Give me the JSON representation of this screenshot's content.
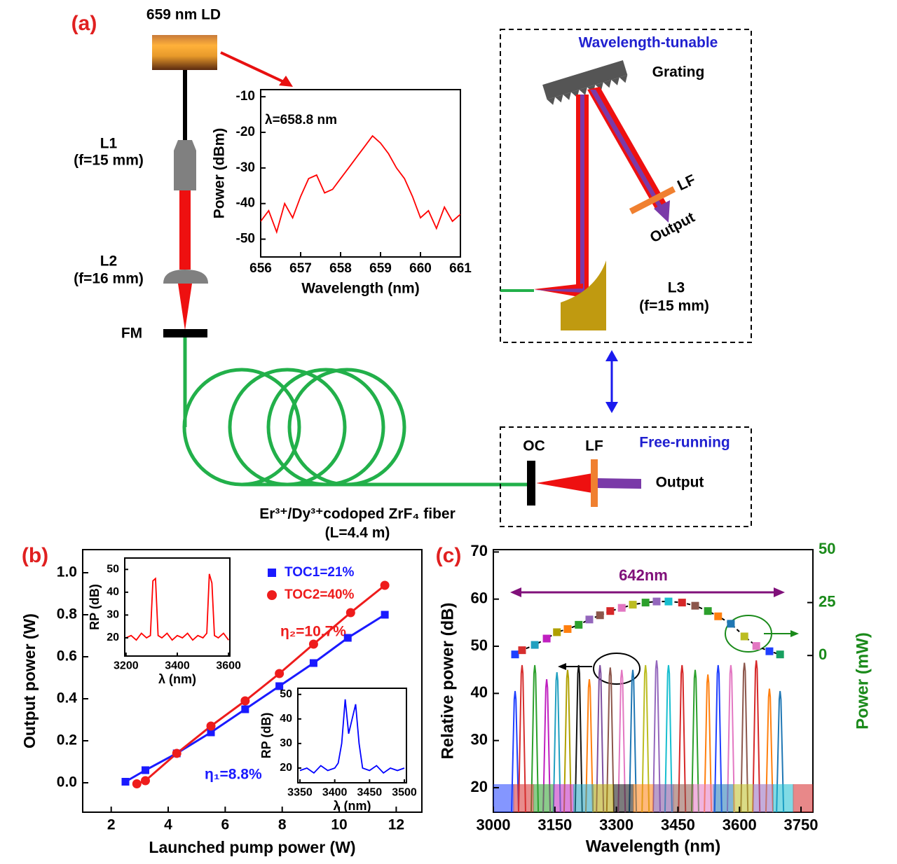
{
  "diagram": {
    "panel_label": "(a)",
    "ld": "659 nm LD",
    "l1": "L1",
    "l1_focal": "(f=15 mm)",
    "l2": "L2",
    "l2_focal": "(f=16 mm)",
    "fm": "FM",
    "tunable_title": "Wavelength-tunable",
    "grating": "Grating",
    "lf_tunable": "LF",
    "output_tunable": "Output",
    "l3": "L3",
    "l3_focal": "(f=15 mm)",
    "free_title": "Free-running",
    "oc": "OC",
    "lf_free": "LF",
    "output_free": "Output",
    "fiber": "Er³⁺/Dy³⁺codoped ZrF₄ fiber",
    "fiber_length": "(L=4.4 m)"
  },
  "chart_data": [
    {
      "type": "line",
      "xlabel": "Wavelength (nm)",
      "ylabel": "Power (dBm)",
      "annotations": [
        "λ=658.8 nm"
      ],
      "xlim": [
        656,
        661
      ],
      "xticks": [
        656,
        657,
        658,
        659,
        660,
        661
      ],
      "ylim": [
        -55,
        -8
      ],
      "yticks": [
        -10,
        -20,
        -30,
        -40,
        -50
      ],
      "series": [
        {
          "color": "#ff0000",
          "style": "line",
          "x": [
            656.0,
            656.2,
            656.4,
            656.6,
            656.8,
            657.0,
            657.2,
            657.4,
            657.6,
            657.8,
            658.0,
            658.2,
            658.4,
            658.6,
            658.8,
            659.0,
            659.2,
            659.4,
            659.6,
            659.8,
            660.0,
            660.2,
            660.4,
            660.6,
            660.8,
            661.0
          ],
          "values": [
            -45,
            -42,
            -48,
            -40,
            -44,
            -38,
            -33,
            -32,
            -37,
            -36,
            -33,
            -30,
            -27,
            -24,
            -21,
            -23,
            -26,
            -30,
            -33,
            -38,
            -44,
            -42,
            -47,
            -41,
            -45,
            -43
          ]
        }
      ]
    },
    {
      "type": "line",
      "panel_label": "(b)",
      "xlabel": "Launched pump power (W)",
      "ylabel": "Output power (W)",
      "annotations": [
        "η₂=10.7%",
        "η₁=8.8%"
      ],
      "xlim": [
        1,
        12.9
      ],
      "xticks": [
        2,
        4,
        6,
        8,
        10,
        12
      ],
      "ylim": [
        -0.14,
        1.11
      ],
      "yticks": [
        {
          "value": 0,
          "label": "0.0"
        },
        0.2,
        0.4,
        0.6,
        0.8,
        {
          "value": 1,
          "label": "1.0"
        }
      ],
      "legend": "top-right",
      "series": [
        {
          "name": "TOC1=21%",
          "color": "#1a1aff",
          "style": "line-markers",
          "marker": "square",
          "x": [
            2.5,
            3.2,
            4.3,
            5.5,
            6.7,
            7.9,
            9.1,
            10.3,
            11.6
          ],
          "values": [
            0.005,
            0.06,
            0.14,
            0.24,
            0.35,
            0.46,
            0.57,
            0.69,
            0.8
          ]
        },
        {
          "name": "TOC2=40%",
          "color": "#ee1c1c",
          "style": "line-markers",
          "marker": "circle",
          "x": [
            2.9,
            3.2,
            4.3,
            5.5,
            6.7,
            7.9,
            9.1,
            10.4,
            11.6
          ],
          "values": [
            -0.005,
            0.01,
            0.14,
            0.27,
            0.39,
            0.52,
            0.66,
            0.81,
            0.94
          ]
        }
      ]
    },
    {
      "type": "line",
      "xlabel": "λ (nm)",
      "ylabel": "RP (dB)",
      "xlim": [
        3195,
        3605
      ],
      "xticks": [
        3200,
        3400,
        3600
      ],
      "ylim": [
        12,
        55
      ],
      "yticks": [
        20,
        30,
        40,
        50
      ],
      "series": [
        {
          "color": "#ff0000",
          "style": "line",
          "x": [
            3200,
            3220,
            3240,
            3260,
            3280,
            3295,
            3305,
            3315,
            3325,
            3340,
            3360,
            3380,
            3400,
            3420,
            3440,
            3460,
            3480,
            3500,
            3515,
            3525,
            3535,
            3545,
            3560,
            3580,
            3600
          ],
          "values": [
            20,
            21,
            19,
            22,
            20,
            21,
            45,
            46,
            21,
            20,
            22,
            19,
            21,
            20,
            22,
            19,
            21,
            20,
            22,
            48,
            44,
            21,
            20,
            22,
            19
          ]
        }
      ]
    },
    {
      "type": "line",
      "xlabel": "λ (nm)",
      "ylabel": "RP (dB)",
      "xlim": [
        3347,
        3503
      ],
      "xticks": [
        3350,
        3400,
        3450,
        3500
      ],
      "ylim": [
        14,
        52.5
      ],
      "yticks": [
        20,
        30,
        40,
        50
      ],
      "series": [
        {
          "color": "#0000ff",
          "style": "line",
          "x": [
            3350,
            3360,
            3370,
            3380,
            3390,
            3400,
            3405,
            3410,
            3415,
            3420,
            3425,
            3430,
            3435,
            3440,
            3450,
            3460,
            3470,
            3480,
            3490,
            3500
          ],
          "values": [
            19,
            20,
            18,
            21,
            19,
            20,
            22,
            30,
            48,
            34,
            40,
            46,
            30,
            20,
            19,
            21,
            18,
            20,
            19,
            20
          ]
        }
      ]
    },
    {
      "type": "line",
      "panel_label": "(c)",
      "xlabel": "Wavelength (nm)",
      "ylabel": "Relative power (dB)",
      "y2label": "Power (mW)",
      "annotations": [
        "642nm"
      ],
      "xlim": [
        3000,
        3779
      ],
      "xticks": [
        3000,
        3150,
        3300,
        3450,
        3600,
        3750
      ],
      "ylim": [
        14.8,
        70.5
      ],
      "yticks": [
        20,
        30,
        40,
        50,
        60,
        70
      ],
      "y2lim": [
        -74,
        50
      ],
      "y2ticks": [
        0,
        25,
        50
      ],
      "y2color": "#1a8a1a",
      "series": [
        {
          "style": "peaks",
          "x": [
            3053,
            3070,
            3101,
            3130,
            3155,
            3181,
            3208,
            3234,
            3260,
            3285,
            3313,
            3340,
            3371,
            3398,
            3427,
            3460,
            3492,
            3523,
            3548,
            3579,
            3612,
            3641,
            3673,
            3699
          ],
          "values": [
            40.5,
            46,
            46,
            43,
            44.5,
            45,
            46,
            43,
            46,
            45.5,
            45,
            45,
            46,
            47,
            46,
            46,
            45,
            44,
            46,
            46,
            46.5,
            47,
            41,
            40.5
          ],
          "colors": [
            "#1f3fff",
            "#d62e2e",
            "#2ca02c",
            "#c020c0",
            "#20a0c0",
            "#b0a000",
            "#101010",
            "#ff7f0e",
            "#7f4f9f",
            "#8c564b",
            "#e377c2",
            "#1f77b4",
            "#bcbd22",
            "#9467bd",
            "#17becf",
            "#d62728",
            "#2ca02c",
            "#ff7f0e",
            "#1f3fff",
            "#e377c2",
            "#8c564b",
            "#d62728",
            "#ff7f0e",
            "#1f77b4"
          ]
        },
        {
          "style": "markers",
          "axis": "y2",
          "color": "#000000",
          "x": [
            3053,
            3070,
            3101,
            3130,
            3155,
            3181,
            3208,
            3234,
            3260,
            3285,
            3313,
            3340,
            3371,
            3398,
            3427,
            3460,
            3492,
            3523,
            3548,
            3579,
            3612,
            3641,
            3673,
            3699
          ],
          "values": [
            0.5,
            2.5,
            5,
            8,
            11,
            12.5,
            14.5,
            17,
            19,
            21,
            22.5,
            24,
            25,
            25.5,
            25.5,
            25,
            23.5,
            21,
            18.5,
            15,
            9,
            4.5,
            2,
            0.5
          ],
          "colors": [
            "#1f3fff",
            "#d62e2e",
            "#20a0c0",
            "#c020c0",
            "#b0a000",
            "#ff7f0e",
            "#2ca02c",
            "#9467bd",
            "#8c564b",
            "#d62728",
            "#e377c2",
            "#bcbd22",
            "#2ca02c",
            "#9467bd",
            "#17becf",
            "#d62728",
            "#8c564b",
            "#2ca02c",
            "#ff7f0e",
            "#1f77b4",
            "#bcbd22",
            "#e377c2",
            "#1f3fff",
            "#17a060"
          ]
        }
      ]
    }
  ]
}
